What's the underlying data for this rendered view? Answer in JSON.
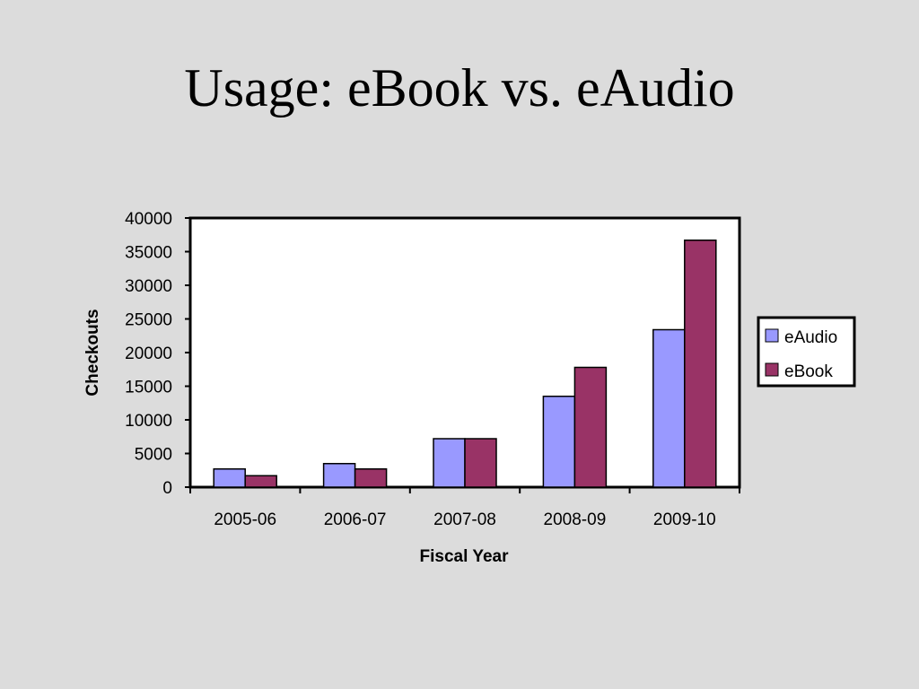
{
  "slide": {
    "title": "Usage: eBook vs. eAudio"
  },
  "chart_data": {
    "type": "bar",
    "title": "",
    "xlabel": "Fiscal Year",
    "ylabel": "Checkouts",
    "categories": [
      "2005-06",
      "2006-07",
      "2007-08",
      "2008-09",
      "2009-10"
    ],
    "series": [
      {
        "name": "eAudio",
        "color": "#9999ff",
        "values": [
          2700,
          3500,
          7200,
          13500,
          23400
        ]
      },
      {
        "name": "eBook",
        "color": "#993366",
        "values": [
          1700,
          2700,
          7200,
          17800,
          36700
        ]
      }
    ],
    "ylim": [
      0,
      40000
    ],
    "yticks": [
      "0",
      "5000",
      "10000",
      "15000",
      "20000",
      "25000",
      "30000",
      "35000",
      "40000"
    ],
    "grid": false,
    "legend_position": "right"
  }
}
